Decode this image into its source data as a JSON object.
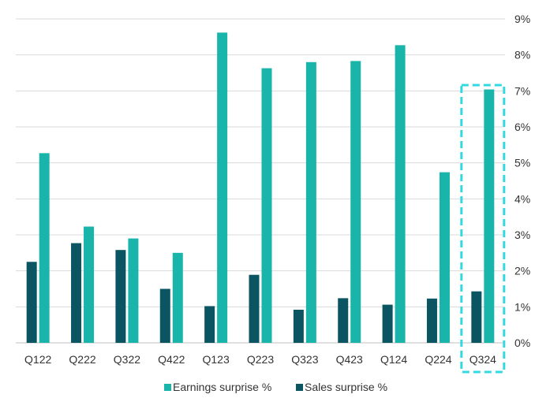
{
  "chart_data": {
    "type": "bar",
    "title": "",
    "xlabel": "",
    "ylabel": "",
    "categories": [
      "Q122",
      "Q222",
      "Q322",
      "Q422",
      "Q123",
      "Q223",
      "Q323",
      "Q423",
      "Q124",
      "Q224",
      "Q324"
    ],
    "series": [
      {
        "name": "Sales surprise %",
        "color": "#0b5563",
        "values": [
          2.25,
          2.77,
          2.58,
          1.5,
          1.02,
          1.89,
          0.92,
          1.24,
          1.06,
          1.23,
          1.43
        ]
      },
      {
        "name": "Earnings surprise %",
        "color": "#1ab5aa",
        "values": [
          5.27,
          3.23,
          2.9,
          2.5,
          8.62,
          7.63,
          7.8,
          7.83,
          8.27,
          4.74,
          7.04
        ]
      }
    ],
    "ylim": [
      0,
      9
    ],
    "yticks": [
      "0%",
      "1%",
      "2%",
      "3%",
      "4%",
      "5%",
      "6%",
      "7%",
      "8%",
      "9%"
    ],
    "y_axis_position": "right",
    "grid": true,
    "legend": {
      "position": "bottom",
      "entries": [
        {
          "label": "Earnings surprise %",
          "color": "#1ab5aa"
        },
        {
          "label": "Sales surprise %",
          "color": "#0b5563"
        }
      ]
    },
    "highlight": {
      "category": "Q324",
      "style": "dashed-box",
      "color": "#33d9e0"
    }
  }
}
